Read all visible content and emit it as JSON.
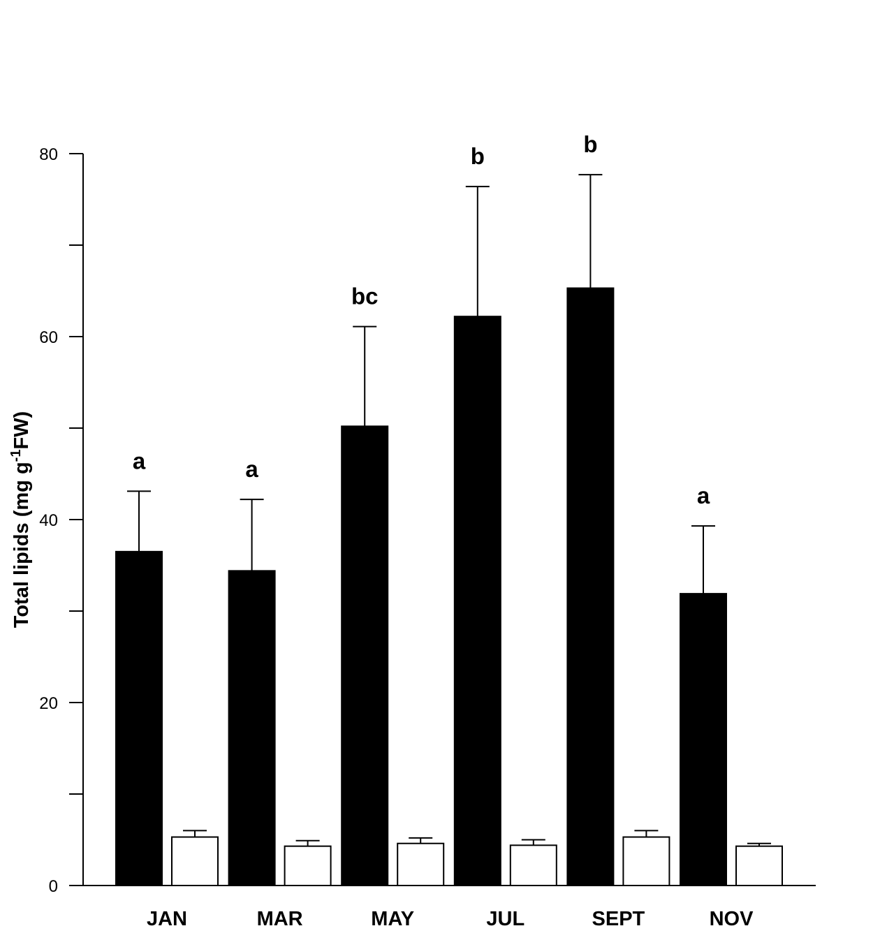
{
  "chart_data": {
    "type": "bar",
    "title": "",
    "xlabel": "",
    "ylabel": {
      "main": "Total lipids (mg g",
      "superscript": "-1",
      "suffix": "FW)"
    },
    "ylim": [
      0,
      80
    ],
    "y_ticks": [
      0,
      10,
      20,
      30,
      40,
      50,
      60,
      70,
      80
    ],
    "y_tick_labels": [
      "0",
      "",
      "20",
      "",
      "40",
      "",
      "60",
      "",
      "80"
    ],
    "categories": [
      "JAN",
      "MAR",
      "MAY",
      "JUL",
      "SEPT",
      "NOV"
    ],
    "series": [
      {
        "fill": "#000000",
        "values": [
          36.5,
          34.4,
          50.2,
          62.2,
          65.3,
          31.9
        ],
        "errors": [
          6.6,
          7.8,
          10.9,
          14.2,
          12.4,
          7.4
        ],
        "significance": [
          "a",
          "a",
          "bc",
          "b",
          "b",
          "a"
        ]
      },
      {
        "fill": "#ffffff",
        "values": [
          5.3,
          4.3,
          4.6,
          4.4,
          5.3,
          4.3
        ],
        "errors": [
          0.7,
          0.6,
          0.6,
          0.6,
          0.7,
          0.3
        ]
      }
    ],
    "grid": false,
    "legend": "none"
  }
}
